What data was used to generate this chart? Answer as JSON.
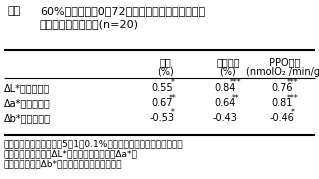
{
  "title_label": "表１",
  "title_text": "60%粉の成分と0～72時間後の中華めん生地色の\n変化量との相関係数(n=20)",
  "col_header1": [
    "灰分",
    "(%)"
  ],
  "col_header2": [
    "蛋白含量",
    "(%)"
  ],
  "col_header3": [
    "PPO活性",
    "(nmolO₂ /min/g)"
  ],
  "row_headers": [
    "ΔL*（減少量）",
    "Δa*（増加量）",
    "Δb*（増加量）"
  ],
  "values": [
    [
      "0.55",
      "0.84",
      "0.76"
    ],
    [
      "0.67",
      "0.64",
      "0.81"
    ],
    [
      "-0.53",
      "-0.43",
      "-0.46"
    ]
  ],
  "significance": [
    [
      "*",
      "***",
      "***"
    ],
    [
      "**",
      "**",
      "***"
    ],
    [
      "*",
      "",
      "*"
    ]
  ],
  "footnote1": "＊、＊＊、＊＊＊は各々5、1、0.1%水準で有意であることを示す。",
  "footnote2": "以下の図表も同様。ΔL*は明るさの減少量、Δa*は",
  "footnote3": "赤みの増加量、Δb*は黄色みの増加量を示す。",
  "bg_color": "#ffffff",
  "text_color": "#000000"
}
